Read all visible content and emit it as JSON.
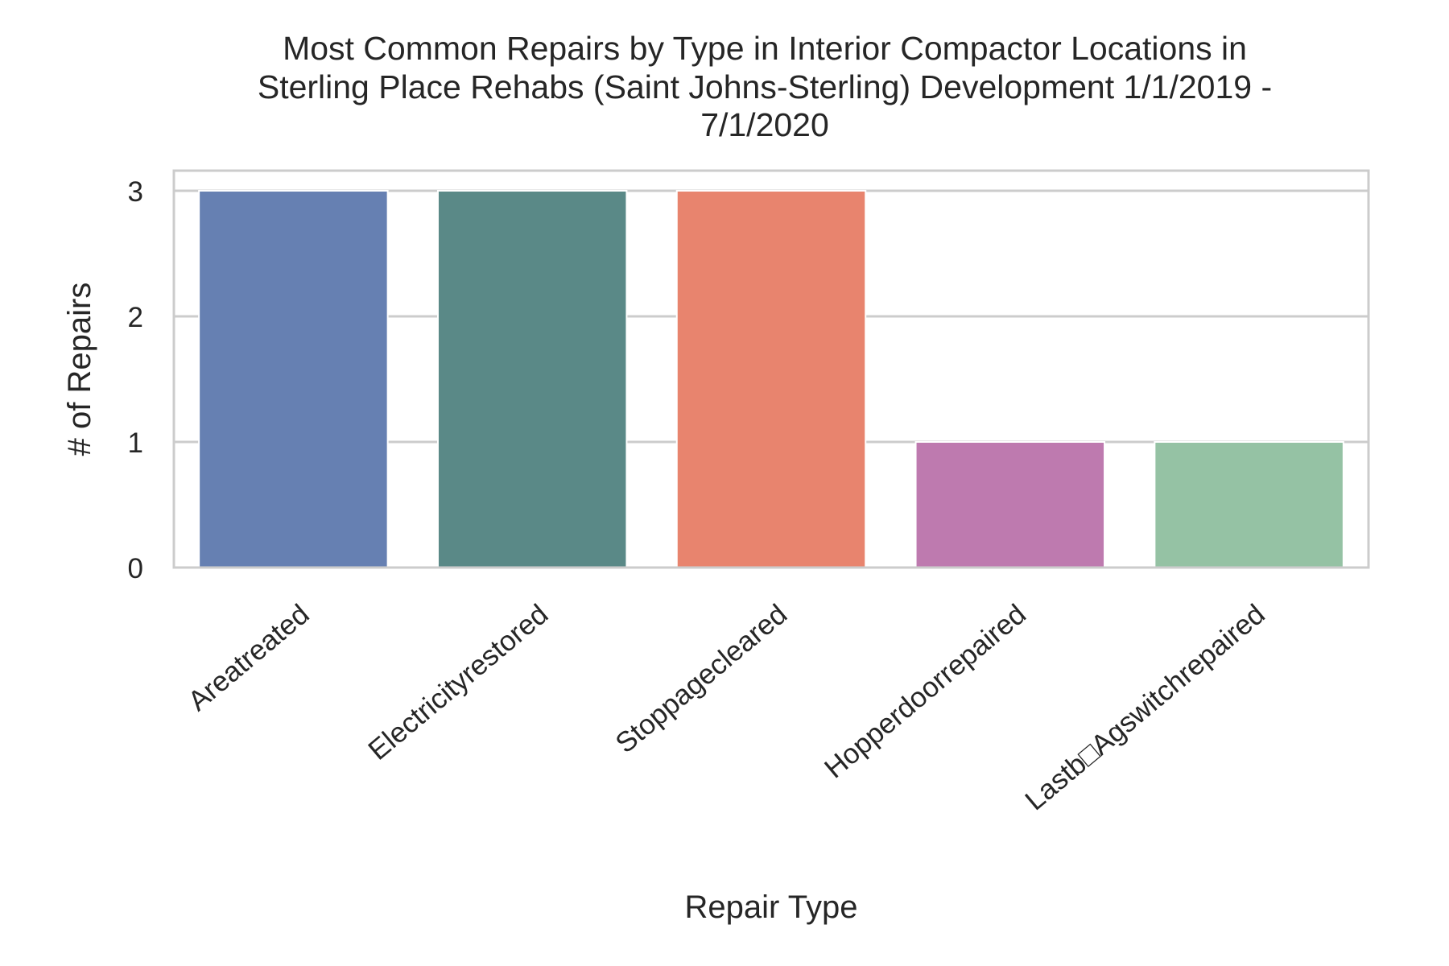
{
  "chart_data": {
    "type": "bar",
    "title_lines": [
      "Most Common Repairs by Type in Interior Compactor Locations in",
      "Sterling Place Rehabs (Saint Johns-Sterling) Development 1/1/2019 -",
      "7/1/2020"
    ],
    "xlabel": "Repair Type",
    "ylabel": "# of Repairs",
    "categories": [
      "Areatreated",
      "Electricityrestored",
      "Stoppagecleared",
      "Hopperdoorrepaired",
      "Lastb□Agswitchrepaired"
    ],
    "values": [
      3,
      3,
      3,
      1,
      1
    ],
    "colors": [
      "#6680b2",
      "#5a8987",
      "#e8846e",
      "#be7aaf",
      "#95c2a4"
    ],
    "ylim": [
      0,
      3.16
    ],
    "yticks": [
      0,
      1,
      2,
      3
    ],
    "grid": true,
    "legend": "none"
  }
}
